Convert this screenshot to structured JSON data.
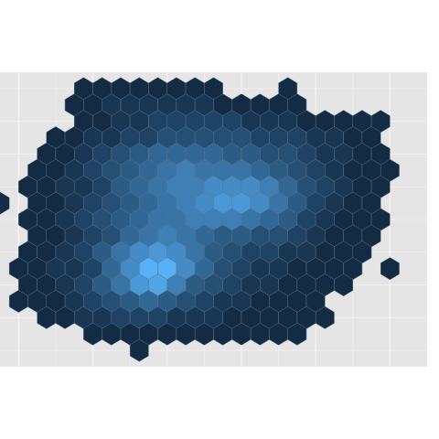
{
  "chart_data": {
    "type": "heatmap",
    "subtype": "hexbin",
    "title": "",
    "xlabel": "",
    "ylabel": "",
    "x_range": [
      0.0,
      23.0
    ],
    "y_range": [
      0.0,
      18.0
    ],
    "grid": true,
    "legend": "none",
    "colors": {
      "panel_background": "#e5e5e5",
      "gridline": "#f4f4f4",
      "low": "#132b43",
      "high": "#56b1f7",
      "hex_border": "#5f7488"
    },
    "rows": [
      {
        "y": 17,
        "x_start": 4.5,
        "counts": [
          1,
          1,
          1,
          1,
          1,
          1,
          1,
          1,
          0,
          0,
          0,
          1
        ]
      },
      {
        "y": 16,
        "x_start": 4.0,
        "counts": [
          1,
          1,
          2,
          2,
          2,
          2,
          2,
          2,
          1,
          1,
          1,
          1,
          1
        ]
      },
      {
        "y": 15,
        "x_start": 4.5,
        "counts": [
          1,
          1,
          2,
          2,
          3,
          3,
          3,
          3,
          3,
          2,
          2,
          2,
          1,
          1,
          1,
          1,
          1
        ]
      },
      {
        "y": 14,
        "x_start": 3.0,
        "counts": [
          1,
          1,
          2,
          2,
          3,
          3,
          4,
          4,
          4,
          4,
          4,
          3,
          3,
          3,
          2,
          2,
          1,
          1
        ]
      },
      {
        "y": 13,
        "x_start": 2.5,
        "counts": [
          1,
          1,
          2,
          3,
          4,
          5,
          6,
          6,
          6,
          6,
          5,
          5,
          4,
          4,
          3,
          2,
          2,
          1,
          1
        ]
      },
      {
        "y": 12,
        "x_start": 2.0,
        "counts": [
          1,
          1,
          2,
          3,
          4,
          5,
          6,
          7,
          8,
          7,
          7,
          7,
          6,
          5,
          4,
          3,
          2,
          1,
          1,
          1
        ]
      },
      {
        "y": 11,
        "x_start": 1.5,
        "counts": [
          1,
          1,
          2,
          2,
          3,
          5,
          6,
          7,
          8,
          8,
          9,
          9,
          9,
          8,
          6,
          4,
          3,
          2,
          1,
          1
        ]
      },
      {
        "y": 10,
        "x_start": 0.0,
        "counts": [
          1,
          0,
          1,
          1,
          2,
          3,
          4,
          5,
          6,
          7,
          8,
          9,
          10,
          10,
          9,
          7,
          5,
          3,
          2,
          1,
          1
        ]
      },
      {
        "y": 9,
        "x_start": 1.5,
        "counts": [
          1,
          1,
          2,
          3,
          4,
          5,
          6,
          7,
          7,
          8,
          8,
          8,
          7,
          6,
          5,
          3,
          2,
          1,
          1,
          1
        ]
      },
      {
        "y": 8,
        "x_start": 2.0,
        "counts": [
          1,
          1,
          2,
          3,
          4,
          6,
          7,
          8,
          7,
          6,
          5,
          5,
          4,
          4,
          3,
          2,
          1,
          1,
          1
        ]
      },
      {
        "y": 7,
        "x_start": 1.5,
        "counts": [
          1,
          1,
          2,
          3,
          5,
          7,
          9,
          10,
          9,
          7,
          5,
          4,
          3,
          3,
          2,
          2,
          1,
          1,
          1
        ]
      },
      {
        "y": 6,
        "x_start": 1.0,
        "counts": [
          1,
          1,
          2,
          2,
          3,
          6,
          9,
          12,
          12,
          9,
          6,
          4,
          3,
          2,
          2,
          1,
          1,
          1,
          1,
          0,
          1
        ]
      },
      {
        "y": 5,
        "x_start": 1.5,
        "counts": [
          1,
          1,
          2,
          3,
          5,
          7,
          10,
          11,
          8,
          5,
          4,
          3,
          2,
          2,
          1,
          1,
          1,
          1
        ]
      },
      {
        "y": 4,
        "x_start": 1.0,
        "counts": [
          1,
          1,
          1,
          2,
          3,
          4,
          5,
          6,
          5,
          4,
          3,
          2,
          2,
          1,
          1,
          1,
          1
        ]
      },
      {
        "y": 3,
        "x_start": 2.5,
        "counts": [
          1,
          1,
          2,
          2,
          3,
          3,
          3,
          2,
          2,
          2,
          1,
          1,
          1,
          1,
          1,
          1
        ]
      },
      {
        "y": 2,
        "x_start": 5.0,
        "counts": [
          1,
          1,
          1,
          1,
          1,
          1,
          1,
          1,
          1,
          1,
          1,
          1
        ]
      },
      {
        "y": 1,
        "x_start": 7.5,
        "counts": [
          1
        ]
      }
    ]
  }
}
